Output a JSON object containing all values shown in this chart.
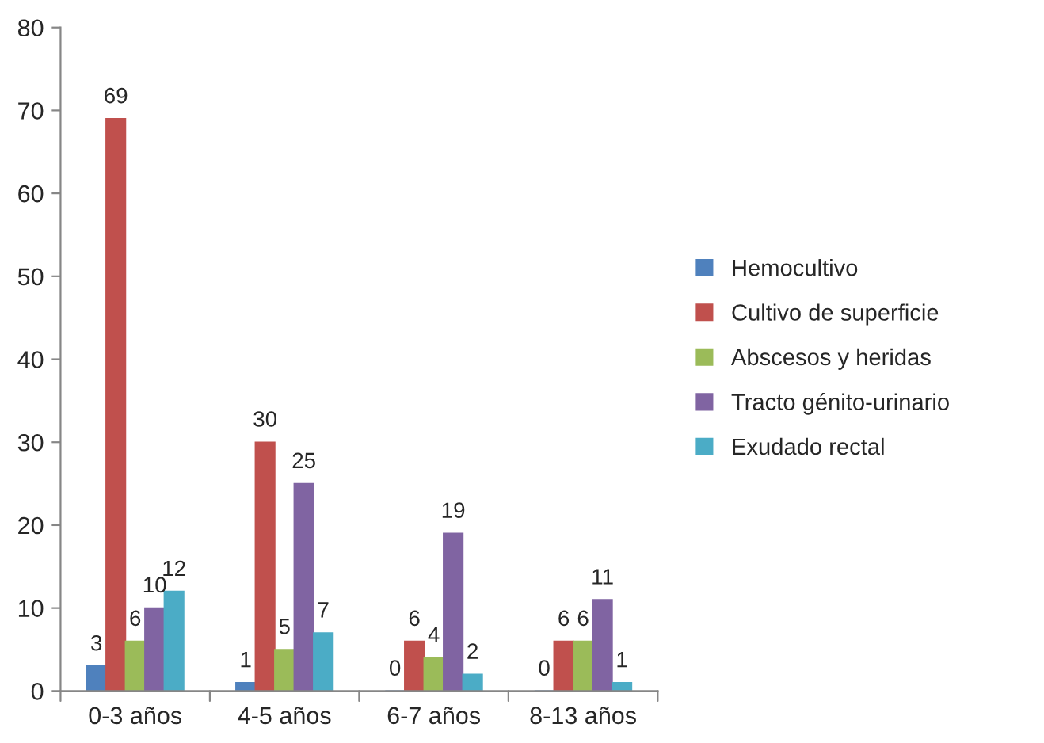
{
  "chart_data": {
    "type": "bar",
    "categories": [
      "0-3 años",
      "4-5 años",
      "6-7 años",
      "8-13 años"
    ],
    "series": [
      {
        "name": "Hemocultivo",
        "color": "#4f81bd",
        "values": [
          3,
          1,
          0,
          0
        ]
      },
      {
        "name": "Cultivo de superficie",
        "color": "#c0504d",
        "values": [
          69,
          30,
          6,
          6
        ]
      },
      {
        "name": "Abscesos y heridas",
        "color": "#9bbb59",
        "values": [
          6,
          5,
          4,
          6
        ]
      },
      {
        "name": "Tracto génito-urinario",
        "color": "#8064a2",
        "values": [
          10,
          25,
          19,
          11
        ]
      },
      {
        "name": "Exudado rectal",
        "color": "#4bacc6",
        "values": [
          12,
          7,
          2,
          1
        ]
      }
    ],
    "ylim": [
      0,
      80
    ],
    "yticks": [
      0,
      10,
      20,
      30,
      40,
      50,
      60,
      70,
      80
    ],
    "data_labels": true,
    "legend": "right",
    "grid": false
  }
}
